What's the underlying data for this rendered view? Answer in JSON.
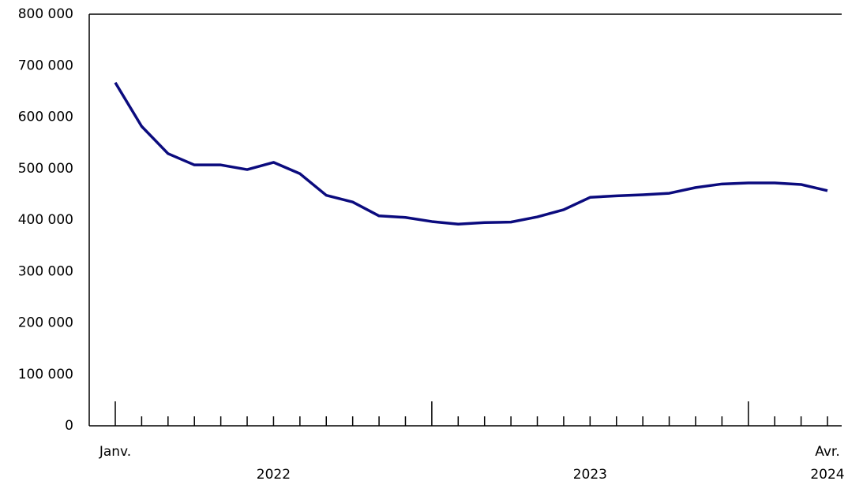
{
  "chart_data": {
    "type": "line",
    "categories": [
      "Janv.",
      null,
      null,
      null,
      null,
      null,
      null,
      null,
      null,
      null,
      null,
      null,
      null,
      null,
      null,
      null,
      null,
      null,
      null,
      null,
      null,
      null,
      null,
      null,
      null,
      null,
      null,
      "Avr."
    ],
    "years": [
      "2022",
      "2023",
      "2024"
    ],
    "series": [
      {
        "color": "#0b0b7e",
        "values": [
          667000,
          582000,
          529000,
          507000,
          507000,
          498000,
          512000,
          490000,
          448000,
          435000,
          408000,
          405000,
          397000,
          392000,
          395000,
          396000,
          406000,
          420000,
          444000,
          447000,
          449000,
          452000,
          463000,
          470000,
          472000,
          472000,
          469000,
          457000
        ]
      }
    ],
    "ylim": [
      0,
      800000
    ],
    "yticks": [
      0,
      {
        "value": 100000,
        "label": "100 000"
      },
      {
        "value": 200000,
        "label": "200 000"
      },
      {
        "value": 300000,
        "label": "300 000"
      },
      {
        "value": 400000,
        "label": "400 000"
      },
      {
        "value": 500000,
        "label": "500 000"
      },
      {
        "value": 600000,
        "label": "600 000"
      },
      {
        "value": 700000,
        "label": "700 000"
      },
      {
        "value": 800000,
        "label": "800 000"
      }
    ],
    "grid": false
  }
}
